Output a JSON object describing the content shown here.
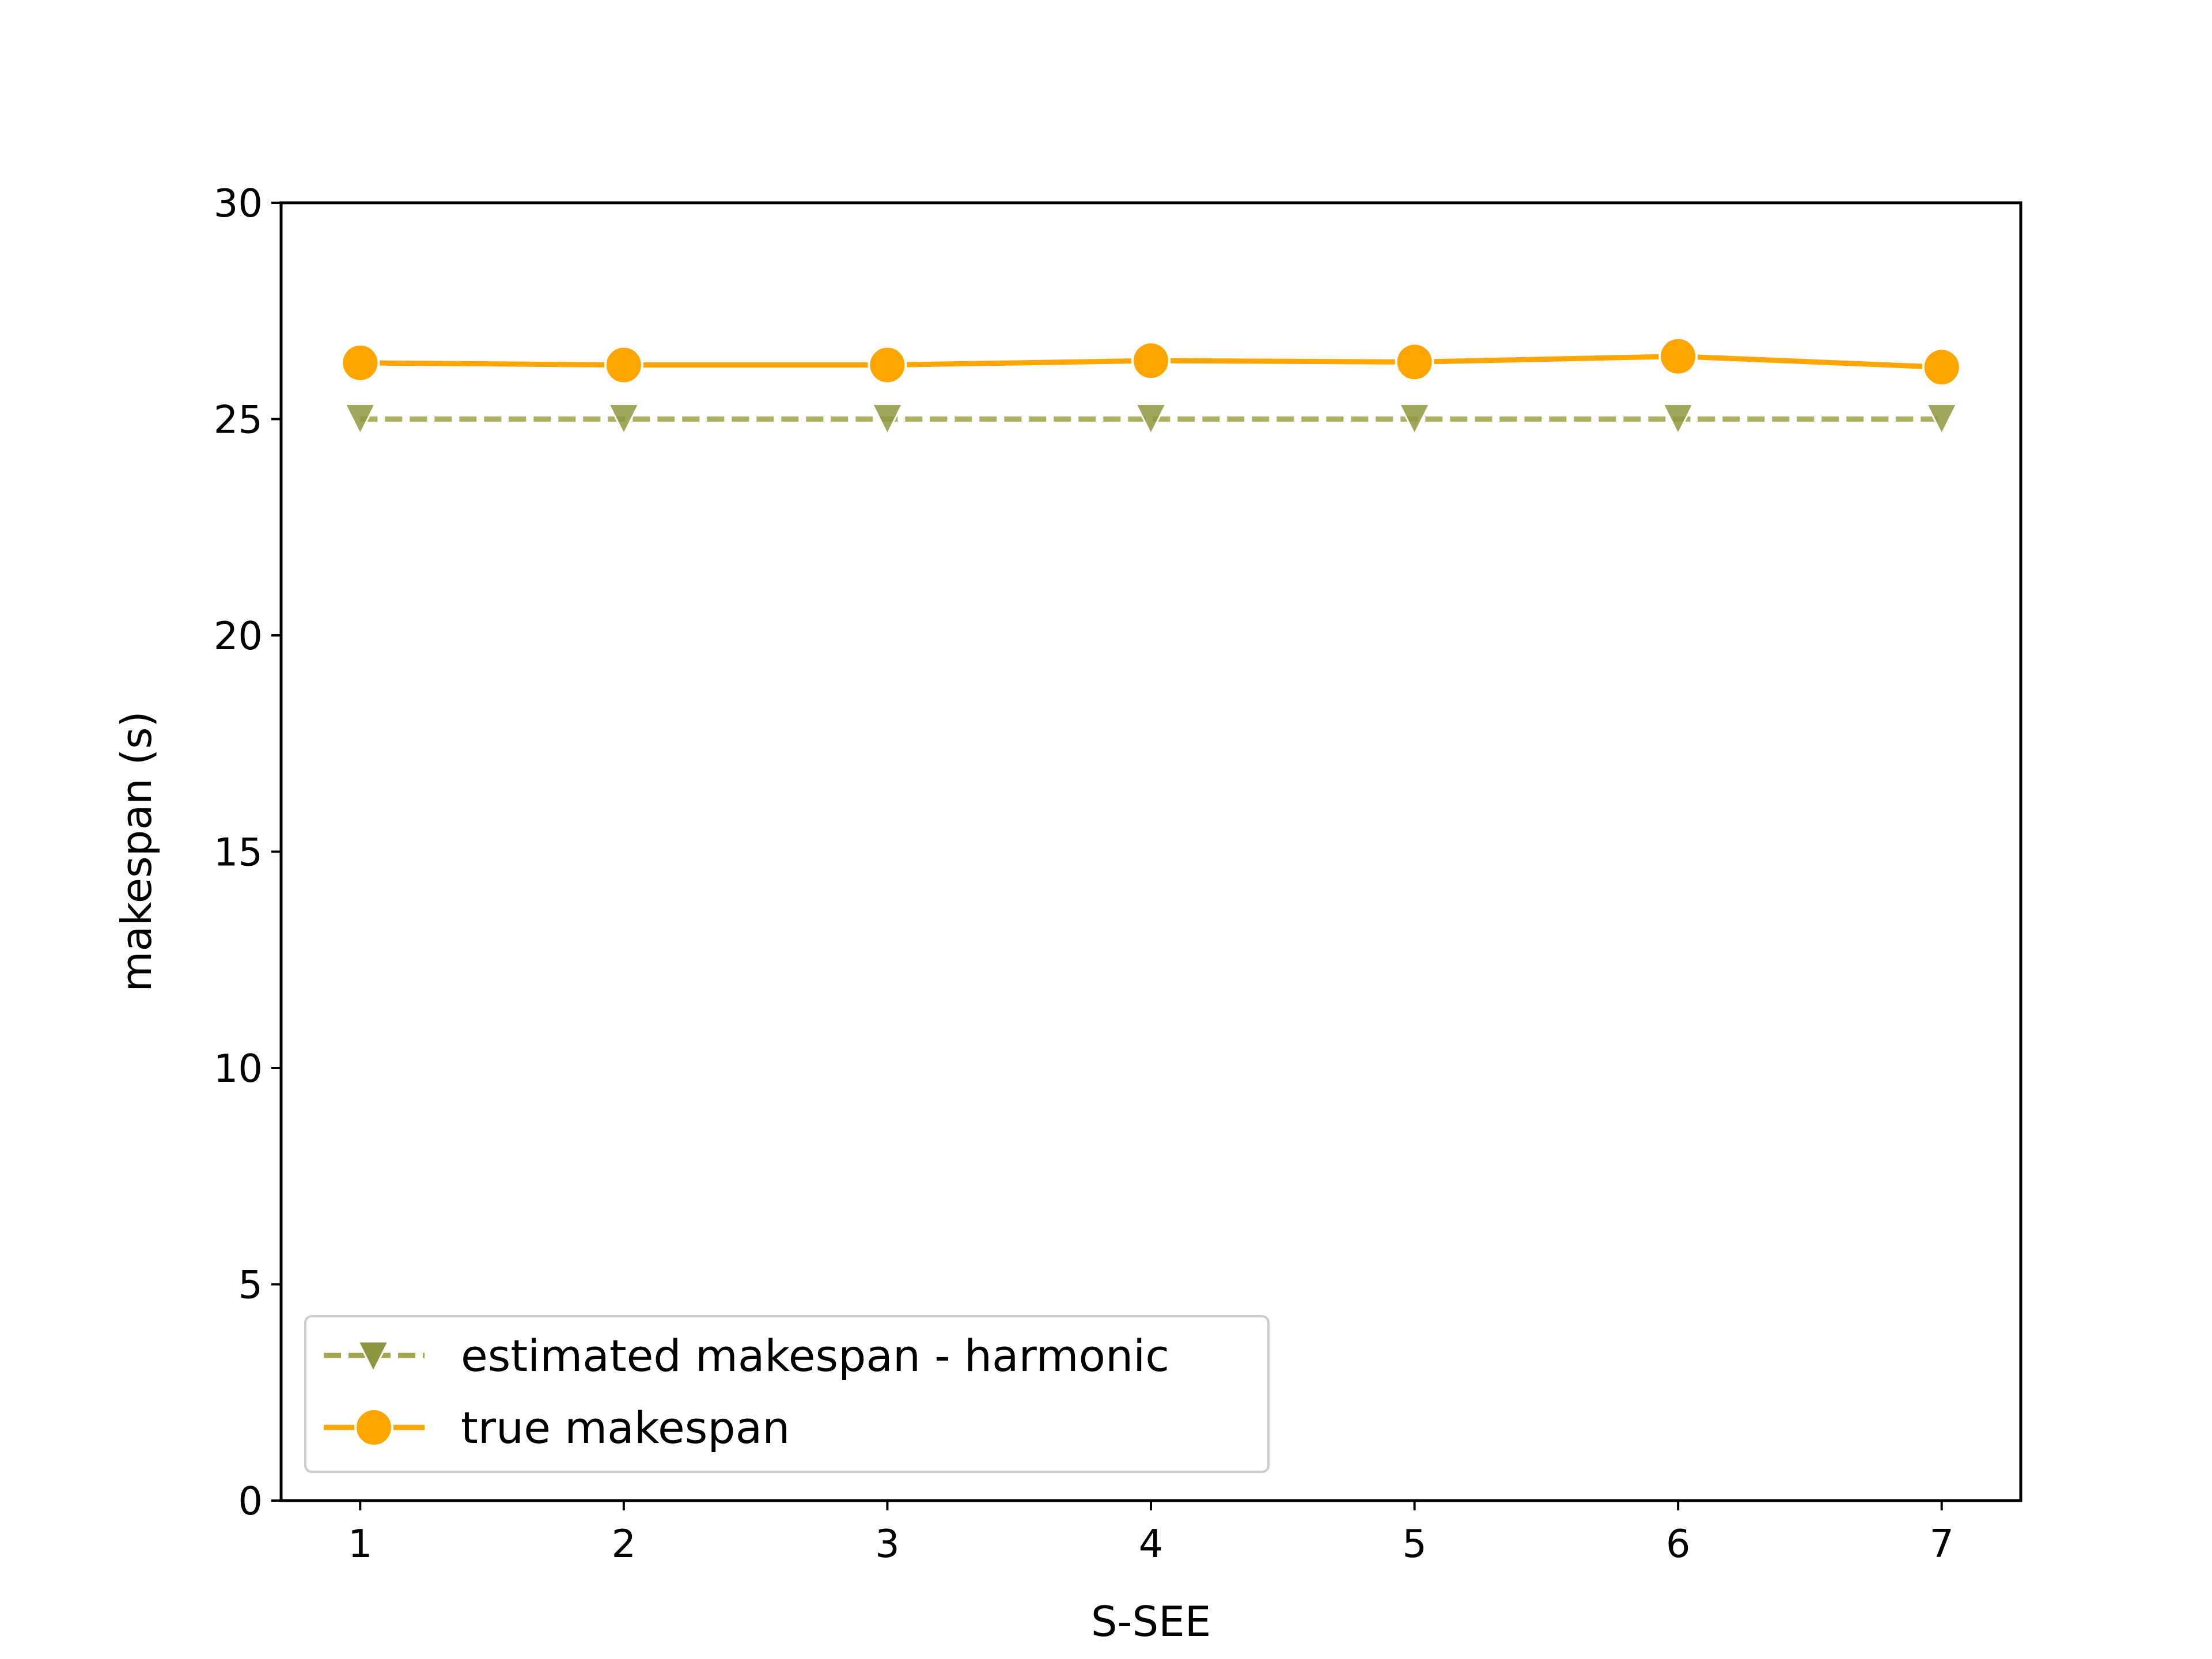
{
  "chart_data": {
    "type": "line",
    "title": "",
    "xlabel": "S-SEE",
    "ylabel": "makespan (s)",
    "x": [
      1,
      2,
      3,
      4,
      5,
      6,
      7
    ],
    "xlim": [
      0.7,
      7.3
    ],
    "ylim": [
      0,
      30
    ],
    "xticks": [
      "1",
      "2",
      "3",
      "4",
      "5",
      "6",
      "7"
    ],
    "yticks": [
      "0",
      "5",
      "10",
      "15",
      "20",
      "25",
      "30"
    ],
    "grid": false,
    "legend_position": "lower-left",
    "series": [
      {
        "name": "estimated makespan - harmonic",
        "values": [
          25.0,
          25.0,
          25.0,
          25.0,
          25.0,
          25.0,
          25.0
        ],
        "color": "#a3a84f",
        "line_style": "dashed",
        "marker": "triangle-down"
      },
      {
        "name": "true makespan",
        "values": [
          26.3,
          26.25,
          26.25,
          26.35,
          26.32,
          26.45,
          26.2
        ],
        "color": "#ffa500",
        "line_style": "solid",
        "marker": "circle"
      }
    ]
  }
}
